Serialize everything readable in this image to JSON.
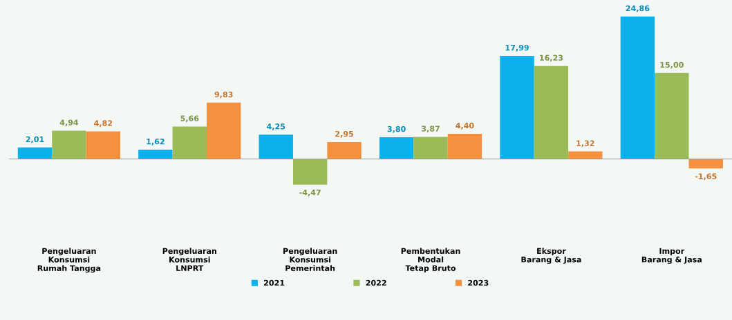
{
  "chart_data": {
    "type": "bar",
    "categories": [
      "Pengeluaran\nKonsumsi\nRumah Tangga",
      "Pengeluaran\nKonsumsi\nLNPRT",
      "Pengeluaran\nKonsumsi\nPemerintah",
      "Pembentukan\nModal\nTetap Bruto",
      "Ekspor\nBarang & Jasa",
      "Impor\nBarang & Jasa"
    ],
    "series": [
      {
        "name": "2021",
        "color": "#0cb0ea",
        "values": [
          2.01,
          1.62,
          4.25,
          3.8,
          17.99,
          24.86
        ],
        "value_labels": [
          "2,01",
          "1,62",
          "4,25",
          "3,80",
          "17,99",
          "24,86"
        ]
      },
      {
        "name": "2022",
        "color": "#9bbb59",
        "values": [
          4.94,
          5.66,
          -4.47,
          3.87,
          16.23,
          15.0
        ],
        "value_labels": [
          "4,94",
          "5,66",
          "-4,47",
          "3,87",
          "16,23",
          "15,00"
        ]
      },
      {
        "name": "2023",
        "color": "#f5913e",
        "values": [
          4.82,
          9.83,
          2.95,
          4.4,
          1.32,
          -1.65
        ],
        "value_labels": [
          "4,82",
          "9,83",
          "2,95",
          "4,40",
          "1,32",
          "-1,65"
        ]
      }
    ],
    "legend": "bottom",
    "grid": false,
    "tick_labels": "x"
  }
}
